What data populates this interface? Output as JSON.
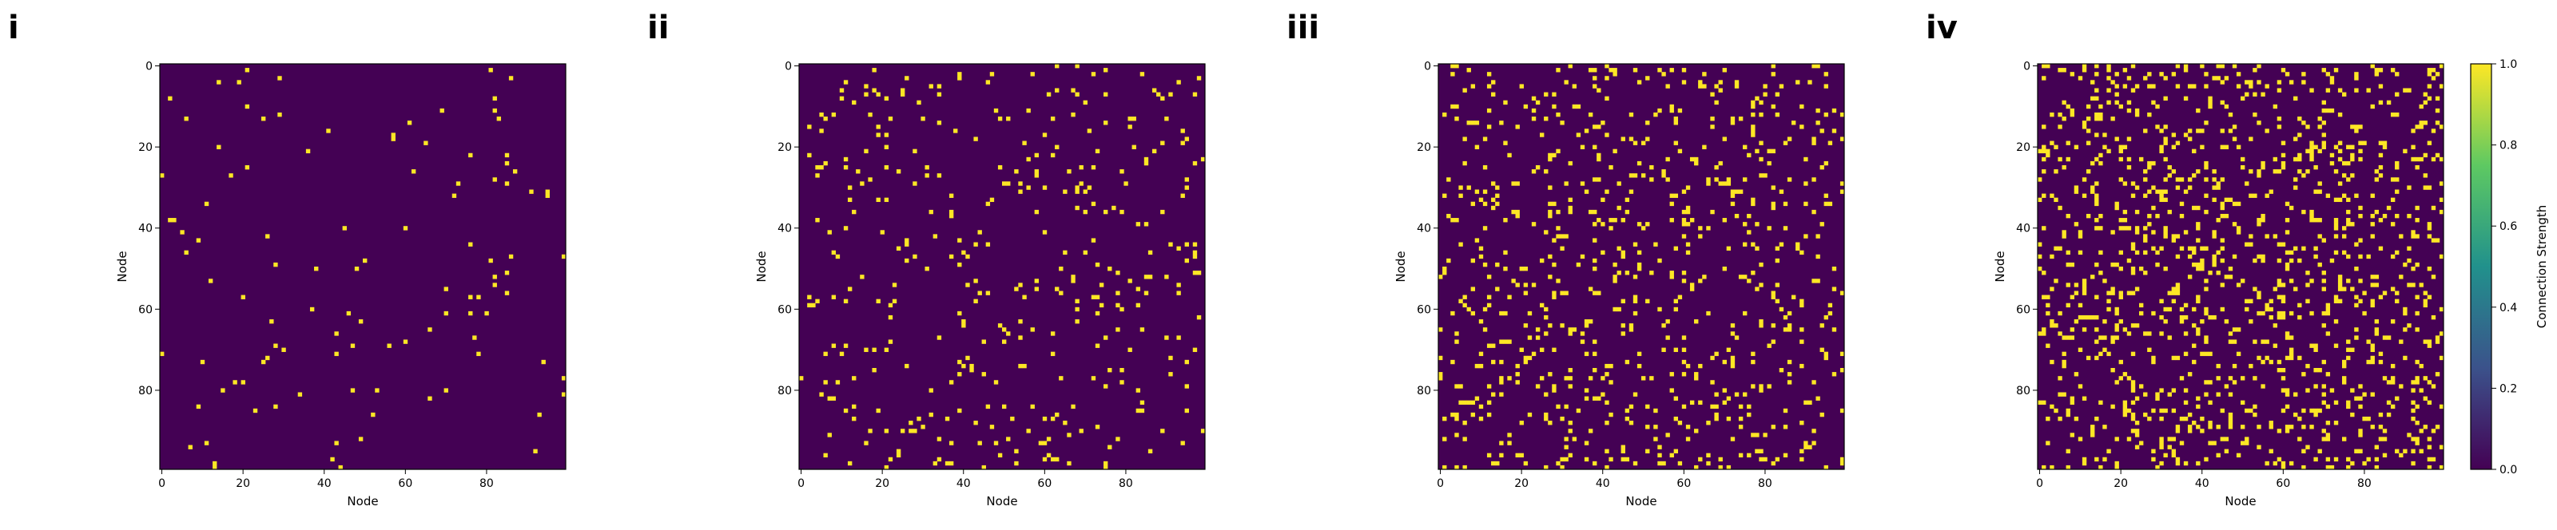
{
  "chart_data": [
    {
      "type": "heatmap",
      "panel_label": "i",
      "title": "",
      "xlabel": "Node",
      "ylabel": "Node",
      "xlim": [
        0,
        99
      ],
      "ylim": [
        99,
        0
      ],
      "x_ticks": [
        0,
        20,
        40,
        60,
        80
      ],
      "y_ticks": [
        0,
        20,
        40,
        60,
        80
      ],
      "grid": false,
      "matrix_size": 100,
      "value_range": [
        0,
        1
      ],
      "density": 0.012,
      "seed": 11
    },
    {
      "type": "heatmap",
      "panel_label": "ii",
      "title": "",
      "xlabel": "Node",
      "ylabel": "Node",
      "xlim": [
        0,
        99
      ],
      "ylim": [
        99,
        0
      ],
      "x_ticks": [
        0,
        20,
        40,
        60,
        80
      ],
      "y_ticks": [
        0,
        20,
        40,
        60,
        80
      ],
      "grid": false,
      "matrix_size": 100,
      "value_range": [
        0,
        1
      ],
      "density": 0.035,
      "seed": 23
    },
    {
      "type": "heatmap",
      "panel_label": "iii",
      "title": "",
      "xlabel": "Node",
      "ylabel": "Node",
      "xlim": [
        0,
        99
      ],
      "ylim": [
        99,
        0
      ],
      "x_ticks": [
        0,
        20,
        40,
        60,
        80
      ],
      "y_ticks": [
        0,
        20,
        40,
        60,
        80
      ],
      "grid": false,
      "matrix_size": 100,
      "value_range": [
        0,
        1
      ],
      "density": 0.07,
      "seed": 37
    },
    {
      "type": "heatmap",
      "panel_label": "iv",
      "title": "",
      "xlabel": "Node",
      "ylabel": "Node",
      "xlim": [
        0,
        99
      ],
      "ylim": [
        99,
        0
      ],
      "x_ticks": [
        0,
        20,
        40,
        60,
        80
      ],
      "y_ticks": [
        0,
        20,
        40,
        60,
        80
      ],
      "grid": false,
      "matrix_size": 100,
      "value_range": [
        0,
        1
      ],
      "density": 0.12,
      "seed": 53
    }
  ],
  "colorbar": {
    "label": "Connection Strength",
    "ticks": [
      "0.0",
      "0.2",
      "0.4",
      "0.6",
      "0.8",
      "1.0"
    ],
    "colormap": "viridis",
    "colors": [
      "#440154",
      "#3b528b",
      "#21918c",
      "#5ec962",
      "#fde725"
    ]
  },
  "colors": {
    "low": "#440154",
    "high": "#fde725"
  }
}
